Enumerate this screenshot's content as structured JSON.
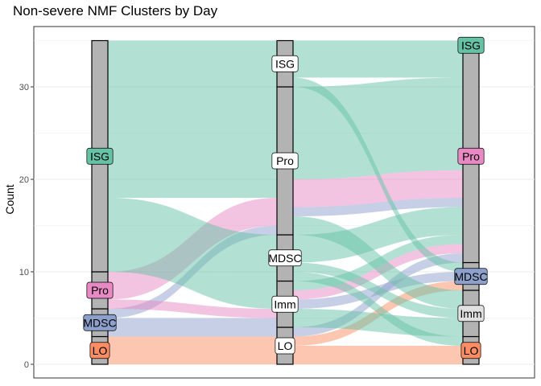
{
  "chart_data": {
    "type": "alluvial",
    "title": "Non-severe NMF Clusters by Day",
    "xlabel": "",
    "ylabel": "Count",
    "ylim": [
      0,
      35
    ],
    "yticks": [
      0,
      10,
      20,
      30
    ],
    "grid": true,
    "legend": "none",
    "axes": [
      {
        "strata": [
          {
            "name": "LO",
            "count": 3
          },
          {
            "name": "MDSC",
            "count": 3
          },
          {
            "name": "Pro",
            "count": 4
          },
          {
            "name": "ISG",
            "count": 25
          }
        ]
      },
      {
        "strata": [
          {
            "name": "LO",
            "count": 4
          },
          {
            "name": "Imm",
            "count": 5
          },
          {
            "name": "MDSC",
            "count": 5
          },
          {
            "name": "Pro",
            "count": 16
          },
          {
            "name": "ISG",
            "count": 5
          }
        ]
      },
      {
        "strata": [
          {
            "name": "LO",
            "count": 3
          },
          {
            "name": "Imm",
            "count": 5
          },
          {
            "name": "MDSC",
            "count": 3
          },
          {
            "name": "Pro",
            "count": 23
          },
          {
            "name": "ISG",
            "count": 1
          }
        ]
      }
    ],
    "flows": [
      {
        "stage": 0,
        "from": "LO",
        "to": "LO",
        "value": 3,
        "group": "LO"
      },
      {
        "stage": 0,
        "from": "MDSC",
        "to": "LO",
        "value": 1,
        "group": "MDSC"
      },
      {
        "stage": 0,
        "from": "MDSC",
        "to": "Imm",
        "value": 1,
        "group": "MDSC"
      },
      {
        "stage": 0,
        "from": "MDSC",
        "to": "Pro",
        "value": 1,
        "group": "MDSC"
      },
      {
        "stage": 0,
        "from": "Pro",
        "to": "Imm",
        "value": 1,
        "group": "Pro"
      },
      {
        "stage": 0,
        "from": "Pro",
        "to": "Pro",
        "value": 3,
        "group": "Pro"
      },
      {
        "stage": 0,
        "from": "ISG",
        "to": "Imm",
        "value": 3,
        "group": "ISG"
      },
      {
        "stage": 0,
        "from": "ISG",
        "to": "MDSC",
        "value": 5,
        "group": "ISG"
      },
      {
        "stage": 0,
        "from": "ISG",
        "to": "Pro",
        "value": 12,
        "group": "ISG"
      },
      {
        "stage": 0,
        "from": "ISG",
        "to": "ISG",
        "value": 5,
        "group": "ISG"
      },
      {
        "stage": 1,
        "from": "LO",
        "to": "LO",
        "value": 2,
        "group": "LO"
      },
      {
        "stage": 1,
        "from": "LO",
        "to": "MDSC",
        "value": 1,
        "group": "LO"
      },
      {
        "stage": 1,
        "from": "LO",
        "to": "Pro",
        "value": 1,
        "group": "MDSC"
      },
      {
        "stage": 1,
        "from": "Imm",
        "to": "Imm",
        "value": 2,
        "group": "ISG"
      },
      {
        "stage": 1,
        "from": "Imm",
        "to": "MDSC",
        "value": 1,
        "group": "MDSC"
      },
      {
        "stage": 1,
        "from": "Imm",
        "to": "Pro",
        "value": 1,
        "group": "Pro"
      },
      {
        "stage": 1,
        "from": "Imm",
        "to": "Pro",
        "value": 1,
        "group": "ISG"
      },
      {
        "stage": 1,
        "from": "MDSC",
        "to": "LO",
        "value": 1,
        "group": "ISG"
      },
      {
        "stage": 1,
        "from": "MDSC",
        "to": "Imm",
        "value": 1,
        "group": "ISG"
      },
      {
        "stage": 1,
        "from": "MDSC",
        "to": "Pro",
        "value": 3,
        "group": "ISG"
      },
      {
        "stage": 1,
        "from": "Pro",
        "to": "Imm",
        "value": 2,
        "group": "ISG"
      },
      {
        "stage": 1,
        "from": "Pro",
        "to": "Pro",
        "value": 1,
        "group": "MDSC"
      },
      {
        "stage": 1,
        "from": "Pro",
        "to": "Pro",
        "value": 3,
        "group": "Pro"
      },
      {
        "stage": 1,
        "from": "Pro",
        "to": "Pro",
        "value": 10,
        "group": "ISG"
      },
      {
        "stage": 1,
        "from": "ISG",
        "to": "MDSC",
        "value": 1,
        "group": "ISG"
      },
      {
        "stage": 1,
        "from": "ISG",
        "to": "Pro",
        "value": 3,
        "group": "ISG"
      },
      {
        "stage": 1,
        "from": "ISG",
        "to": "ISG",
        "value": 1,
        "group": "ISG"
      }
    ],
    "colors": {
      "ISG": "#66c2a5",
      "Pro": "#e78ac3",
      "MDSC": "#8da0cb",
      "LO": "#fc8d62",
      "Imm": "#e0e0e0",
      "strata_bar": "#b3b3b3",
      "panel_border": "#333333",
      "grid": "#ebebeb"
    }
  }
}
